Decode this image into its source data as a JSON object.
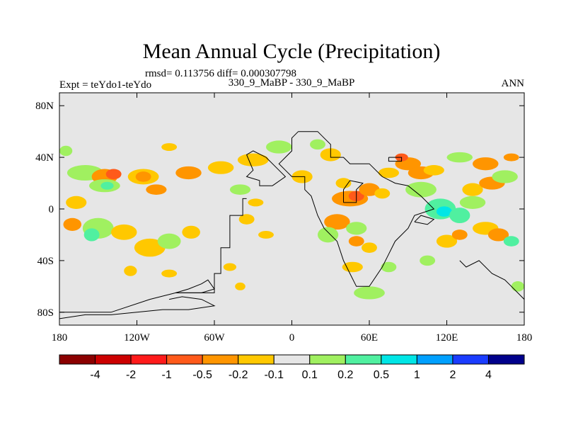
{
  "chart_data": {
    "type": "heatmap",
    "title": "Mean Annual Cycle (Precipitation)",
    "stats_line": "rmsd= 0.113756 diff= 0.000307798",
    "subtitle": "330_9_MaBP - 330_9_MaBP",
    "left_label": "Expt = teYdo1-teYdo",
    "right_label": "ANN",
    "x_range": [
      -180,
      180
    ],
    "y_range": [
      -90,
      90
    ],
    "x_ticks": [
      {
        "value": -180,
        "label": "180"
      },
      {
        "value": -120,
        "label": "120W"
      },
      {
        "value": -60,
        "label": "60W"
      },
      {
        "value": 0,
        "label": "0"
      },
      {
        "value": 60,
        "label": "60E"
      },
      {
        "value": 120,
        "label": "120E"
      },
      {
        "value": 180,
        "label": "180"
      }
    ],
    "y_ticks": [
      {
        "value": 80,
        "label": "80N"
      },
      {
        "value": 40,
        "label": "40N"
      },
      {
        "value": 0,
        "label": "0"
      },
      {
        "value": -40,
        "label": "40S"
      },
      {
        "value": -80,
        "label": "80S"
      }
    ],
    "colorbar": {
      "colors": [
        "#8b0000",
        "#cc0000",
        "#ff1a1a",
        "#ff5a1a",
        "#ff9500",
        "#ffc800",
        "#e6e6e6",
        "#a0f060",
        "#50f0a0",
        "#00e6e6",
        "#00a0ff",
        "#1a3cff",
        "#00008b"
      ],
      "labels": [
        "-4",
        "-2",
        "-1",
        "-0.5",
        "-0.2",
        "-0.1",
        "0.1",
        "0.2",
        "0.5",
        "1",
        "2",
        "4"
      ]
    },
    "background_color": "#e6e6e6",
    "anomaly_patches": [
      {
        "lon": -167,
        "lat": 5,
        "rlon": 8,
        "rlat": 5,
        "color": "#ffc800"
      },
      {
        "lon": -150,
        "lat": -15,
        "rlon": 12,
        "rlat": 8,
        "color": "#a0f060"
      },
      {
        "lon": -155,
        "lat": -20,
        "rlon": 6,
        "rlat": 5,
        "color": "#50f0a0"
      },
      {
        "lon": -170,
        "lat": -12,
        "rlon": 7,
        "rlat": 5,
        "color": "#ff9500"
      },
      {
        "lon": -130,
        "lat": -18,
        "rlon": 10,
        "rlat": 6,
        "color": "#ffc800"
      },
      {
        "lon": -110,
        "lat": -30,
        "rlon": 12,
        "rlat": 7,
        "color": "#ffc800"
      },
      {
        "lon": -95,
        "lat": -25,
        "rlon": 9,
        "rlat": 6,
        "color": "#a0f060"
      },
      {
        "lon": -78,
        "lat": -18,
        "rlon": 7,
        "rlat": 5,
        "color": "#ffc800"
      },
      {
        "lon": -160,
        "lat": 28,
        "rlon": 14,
        "rlat": 6,
        "color": "#a0f060"
      },
      {
        "lon": -145,
        "lat": 25,
        "rlon": 10,
        "rlat": 6,
        "color": "#ff9500"
      },
      {
        "lon": -138,
        "lat": 27,
        "rlon": 6,
        "rlat": 4,
        "color": "#ff5a1a"
      },
      {
        "lon": -145,
        "lat": 18,
        "rlon": 12,
        "rlat": 5,
        "color": "#a0f060"
      },
      {
        "lon": -143,
        "lat": 18,
        "rlon": 5,
        "rlat": 3,
        "color": "#50f0a0"
      },
      {
        "lon": -115,
        "lat": 25,
        "rlon": 12,
        "rlat": 6,
        "color": "#ffc800"
      },
      {
        "lon": -115,
        "lat": 25,
        "rlon": 6,
        "rlat": 4,
        "color": "#ff9500"
      },
      {
        "lon": -105,
        "lat": 15,
        "rlon": 8,
        "rlat": 4,
        "color": "#ff9500"
      },
      {
        "lon": -80,
        "lat": 28,
        "rlon": 10,
        "rlat": 5,
        "color": "#ff9500"
      },
      {
        "lon": -55,
        "lat": 32,
        "rlon": 10,
        "rlat": 5,
        "color": "#ffc800"
      },
      {
        "lon": -30,
        "lat": 38,
        "rlon": 12,
        "rlat": 5,
        "color": "#ffc800"
      },
      {
        "lon": -10,
        "lat": 48,
        "rlon": 10,
        "rlat": 5,
        "color": "#a0f060"
      },
      {
        "lon": -95,
        "lat": 48,
        "rlon": 6,
        "rlat": 3,
        "color": "#ffc800"
      },
      {
        "lon": -175,
        "lat": 45,
        "rlon": 5,
        "rlat": 4,
        "color": "#a0f060"
      },
      {
        "lon": -40,
        "lat": 15,
        "rlon": 8,
        "rlat": 4,
        "color": "#a0f060"
      },
      {
        "lon": -28,
        "lat": 5,
        "rlon": 6,
        "rlat": 3,
        "color": "#ffc800"
      },
      {
        "lon": -35,
        "lat": -8,
        "rlon": 6,
        "rlat": 4,
        "color": "#ffc800"
      },
      {
        "lon": -20,
        "lat": -20,
        "rlon": 6,
        "rlat": 3,
        "color": "#ffc800"
      },
      {
        "lon": -48,
        "lat": -45,
        "rlon": 5,
        "rlat": 3,
        "color": "#ffc800"
      },
      {
        "lon": -40,
        "lat": -60,
        "rlon": 4,
        "rlat": 3,
        "color": "#ffc800"
      },
      {
        "lon": -125,
        "lat": -48,
        "rlon": 5,
        "rlat": 4,
        "color": "#ffc800"
      },
      {
        "lon": -95,
        "lat": -50,
        "rlon": 6,
        "rlat": 3,
        "color": "#ffc800"
      },
      {
        "lon": 8,
        "lat": 25,
        "rlon": 8,
        "rlat": 5,
        "color": "#ffc800"
      },
      {
        "lon": 30,
        "lat": 42,
        "rlon": 8,
        "rlat": 5,
        "color": "#ffc800"
      },
      {
        "lon": 20,
        "lat": 50,
        "rlon": 6,
        "rlat": 4,
        "color": "#a0f060"
      },
      {
        "lon": 45,
        "lat": 8,
        "rlon": 14,
        "rlat": 6,
        "color": "#ff9500"
      },
      {
        "lon": 50,
        "lat": 10,
        "rlon": 6,
        "rlat": 4,
        "color": "#ff5a1a"
      },
      {
        "lon": 60,
        "lat": 15,
        "rlon": 8,
        "rlat": 5,
        "color": "#ff9500"
      },
      {
        "lon": 70,
        "lat": 12,
        "rlon": 6,
        "rlat": 4,
        "color": "#ffc800"
      },
      {
        "lon": 40,
        "lat": 20,
        "rlon": 6,
        "rlat": 4,
        "color": "#ffc800"
      },
      {
        "lon": 35,
        "lat": -10,
        "rlon": 10,
        "rlat": 6,
        "color": "#ff9500"
      },
      {
        "lon": 28,
        "lat": -20,
        "rlon": 8,
        "rlat": 6,
        "color": "#a0f060"
      },
      {
        "lon": 50,
        "lat": -15,
        "rlon": 8,
        "rlat": 5,
        "color": "#a0f060"
      },
      {
        "lon": 50,
        "lat": -25,
        "rlon": 6,
        "rlat": 4,
        "color": "#ff9500"
      },
      {
        "lon": 60,
        "lat": -30,
        "rlon": 6,
        "rlat": 4,
        "color": "#ffc800"
      },
      {
        "lon": 47,
        "lat": -45,
        "rlon": 8,
        "rlat": 4,
        "color": "#ffc800"
      },
      {
        "lon": 60,
        "lat": -65,
        "rlon": 12,
        "rlat": 5,
        "color": "#a0f060"
      },
      {
        "lon": 75,
        "lat": -45,
        "rlon": 6,
        "rlat": 4,
        "color": "#a0f060"
      },
      {
        "lon": 90,
        "lat": 35,
        "rlon": 10,
        "rlat": 5,
        "color": "#ff9500"
      },
      {
        "lon": 85,
        "lat": 40,
        "rlon": 5,
        "rlat": 3,
        "color": "#ff5a1a"
      },
      {
        "lon": 75,
        "lat": 28,
        "rlon": 8,
        "rlat": 4,
        "color": "#ffc800"
      },
      {
        "lon": 100,
        "lat": 28,
        "rlon": 10,
        "rlat": 5,
        "color": "#ff9500"
      },
      {
        "lon": 110,
        "lat": 30,
        "rlon": 8,
        "rlat": 4,
        "color": "#ffc800"
      },
      {
        "lon": 100,
        "lat": 15,
        "rlon": 12,
        "rlat": 6,
        "color": "#a0f060"
      },
      {
        "lon": 115,
        "lat": 0,
        "rlon": 12,
        "rlat": 8,
        "color": "#50f0a0"
      },
      {
        "lon": 118,
        "lat": -2,
        "rlon": 6,
        "rlat": 4,
        "color": "#00e6e6"
      },
      {
        "lon": 130,
        "lat": -5,
        "rlon": 8,
        "rlat": 6,
        "color": "#50f0a0"
      },
      {
        "lon": 140,
        "lat": 5,
        "rlon": 10,
        "rlat": 5,
        "color": "#a0f060"
      },
      {
        "lon": 140,
        "lat": 15,
        "rlon": 8,
        "rlat": 5,
        "color": "#ffc800"
      },
      {
        "lon": 155,
        "lat": 20,
        "rlon": 10,
        "rlat": 5,
        "color": "#ff9500"
      },
      {
        "lon": 165,
        "lat": 25,
        "rlon": 10,
        "rlat": 5,
        "color": "#a0f060"
      },
      {
        "lon": 150,
        "lat": 35,
        "rlon": 10,
        "rlat": 5,
        "color": "#ff9500"
      },
      {
        "lon": 130,
        "lat": 40,
        "rlon": 10,
        "rlat": 4,
        "color": "#a0f060"
      },
      {
        "lon": 170,
        "lat": 40,
        "rlon": 6,
        "rlat": 3,
        "color": "#ff9500"
      },
      {
        "lon": 120,
        "lat": -25,
        "rlon": 8,
        "rlat": 5,
        "color": "#ffc800"
      },
      {
        "lon": 130,
        "lat": -20,
        "rlon": 6,
        "rlat": 4,
        "color": "#ff9500"
      },
      {
        "lon": 150,
        "lat": -15,
        "rlon": 10,
        "rlat": 5,
        "color": "#ffc800"
      },
      {
        "lon": 160,
        "lat": -20,
        "rlon": 8,
        "rlat": 5,
        "color": "#ff9500"
      },
      {
        "lon": 170,
        "lat": -25,
        "rlon": 6,
        "rlat": 4,
        "color": "#50f0a0"
      },
      {
        "lon": 105,
        "lat": -40,
        "rlon": 6,
        "rlat": 4,
        "color": "#a0f060"
      },
      {
        "lon": 175,
        "lat": -60,
        "rlon": 5,
        "rlat": 4,
        "color": "#a0f060"
      }
    ],
    "coastlines": [
      [
        [
          -35,
          8
        ],
        [
          -38,
          8
        ],
        [
          -38,
          -5
        ],
        [
          -48,
          -5
        ],
        [
          -48,
          -30
        ],
        [
          -55,
          -30
        ],
        [
          -55,
          -50
        ],
        [
          -60,
          -50
        ],
        [
          -60,
          -65
        ],
        [
          -90,
          -65
        ],
        [
          -110,
          -70
        ],
        [
          -140,
          -80
        ],
        [
          -180,
          -80
        ]
      ],
      [
        [
          -15,
          18
        ],
        [
          -25,
          18
        ],
        [
          -25,
          22
        ],
        [
          -35,
          25
        ],
        [
          -30,
          30
        ],
        [
          -35,
          42
        ],
        [
          -30,
          45
        ],
        [
          -20,
          40
        ],
        [
          -10,
          30
        ],
        [
          -5,
          25
        ],
        [
          -15,
          18
        ]
      ],
      [
        [
          5,
          60
        ],
        [
          20,
          60
        ],
        [
          25,
          55
        ],
        [
          30,
          50
        ],
        [
          30,
          40
        ],
        [
          40,
          40
        ],
        [
          45,
          35
        ],
        [
          60,
          35
        ],
        [
          70,
          25
        ],
        [
          80,
          20
        ],
        [
          90,
          18
        ],
        [
          100,
          10
        ],
        [
          105,
          5
        ],
        [
          110,
          0
        ],
        [
          95,
          -5
        ],
        [
          90,
          -15
        ],
        [
          80,
          -25
        ],
        [
          75,
          -35
        ],
        [
          70,
          -45
        ],
        [
          60,
          -60
        ],
        [
          50,
          -60
        ],
        [
          45,
          -50
        ],
        [
          40,
          -40
        ],
        [
          35,
          -25
        ],
        [
          25,
          -15
        ],
        [
          20,
          -5
        ],
        [
          15,
          10
        ],
        [
          10,
          15
        ],
        [
          10,
          25
        ],
        [
          0,
          25
        ],
        [
          -5,
          30
        ],
        [
          -10,
          35
        ],
        [
          -5,
          40
        ],
        [
          0,
          45
        ],
        [
          0,
          55
        ],
        [
          5,
          60
        ]
      ],
      [
        [
          75,
          40
        ],
        [
          85,
          40
        ],
        [
          85,
          37
        ],
        [
          75,
          37
        ],
        [
          75,
          40
        ]
      ],
      [
        [
          130,
          -40
        ],
        [
          135,
          -45
        ],
        [
          145,
          -40
        ],
        [
          155,
          -50
        ],
        [
          165,
          -55
        ],
        [
          170,
          -60
        ],
        [
          180,
          -70
        ],
        [
          180,
          -85
        ]
      ],
      [
        [
          -90,
          -65
        ],
        [
          -80,
          -62
        ],
        [
          -70,
          -58
        ],
        [
          -65,
          -55
        ],
        [
          -60,
          -62
        ],
        [
          -70,
          -65
        ],
        [
          -90,
          -65
        ]
      ],
      [
        [
          -95,
          -70
        ],
        [
          -85,
          -68
        ],
        [
          -70,
          -70
        ],
        [
          -60,
          -75
        ],
        [
          -80,
          -78
        ],
        [
          -100,
          -78
        ],
        [
          -120,
          -80
        ],
        [
          -140,
          -82
        ],
        [
          -160,
          -82
        ],
        [
          -180,
          -85
        ]
      ],
      [
        [
          40,
          5
        ],
        [
          50,
          5
        ],
        [
          50,
          15
        ],
        [
          55,
          20
        ],
        [
          45,
          22
        ],
        [
          40,
          15
        ],
        [
          40,
          5
        ]
      ],
      [
        [
          95,
          -10
        ],
        [
          105,
          -12
        ],
        [
          110,
          -8
        ],
        [
          100,
          -5
        ],
        [
          95,
          -10
        ]
      ]
    ]
  }
}
